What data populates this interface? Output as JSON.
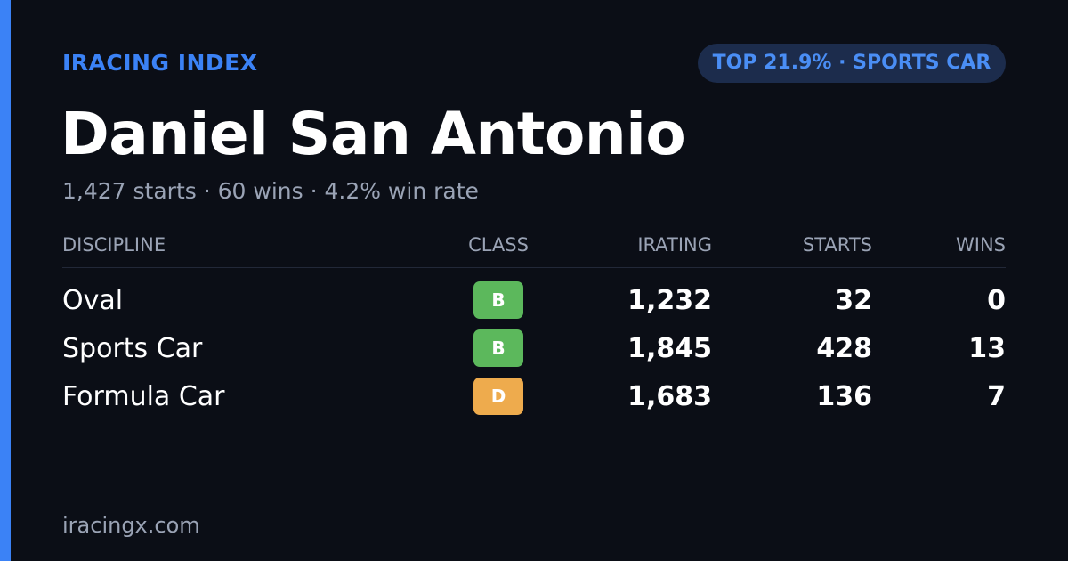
{
  "brand": "IRACING INDEX",
  "badge": "TOP 21.9% · SPORTS CAR",
  "name": "Daniel San Antonio",
  "subtitle": "1,427 starts · 60 wins · 4.2% win rate",
  "table": {
    "headers": [
      "DISCIPLINE",
      "CLASS",
      "IRATING",
      "STARTS",
      "WINS"
    ],
    "rows": [
      [
        "Oval",
        "B",
        "1,232",
        "32",
        "0"
      ],
      [
        "Sports Car",
        "B",
        "1,845",
        "428",
        "13"
      ],
      [
        "Formula Car",
        "D",
        "1,683",
        "136",
        "7"
      ]
    ],
    "class_colors": [
      "#5cb85c",
      "#5cb85c",
      "#eeab4d"
    ]
  },
  "footer": "iracingx.com"
}
